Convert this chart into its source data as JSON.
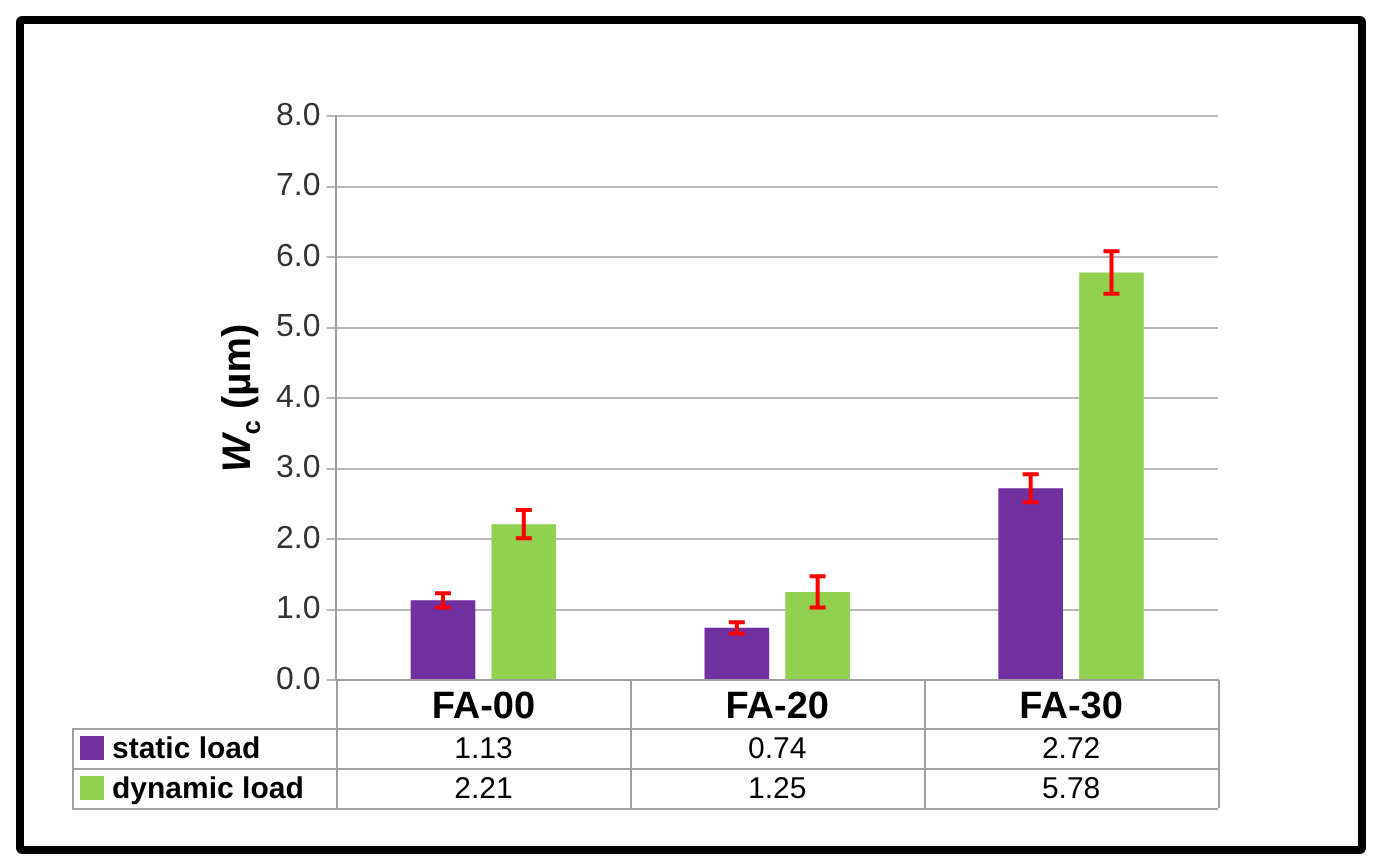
{
  "chart_data": {
    "type": "bar",
    "ylabel": "W$_{c}$ (µm)",
    "categories": [
      "FA-00",
      "FA-20",
      "FA-30"
    ],
    "series": [
      {
        "name": "static load",
        "color": "#7030a0",
        "values": [
          1.13,
          0.74,
          2.72
        ],
        "errors": [
          0.1,
          0.08,
          0.2
        ]
      },
      {
        "name": "dynamic load",
        "color": "#92d050",
        "values": [
          2.21,
          1.25,
          5.78
        ],
        "errors": [
          0.2,
          0.22,
          0.3
        ]
      }
    ],
    "ylim": [
      0,
      8
    ],
    "yticks": [
      {
        "value": 0,
        "label": "0.0"
      },
      {
        "value": 1,
        "label": "1.0"
      },
      {
        "value": 2,
        "label": "2.0"
      },
      {
        "value": 3,
        "label": "3.0"
      },
      {
        "value": 4,
        "label": "4.0"
      },
      {
        "value": 5,
        "label": "5.0"
      },
      {
        "value": 6,
        "label": "6.0"
      },
      {
        "value": 7,
        "label": "7.0"
      },
      {
        "value": 8,
        "label": "8.0"
      }
    ],
    "grid": "y",
    "legend": "bottom",
    "data_labels": true
  }
}
